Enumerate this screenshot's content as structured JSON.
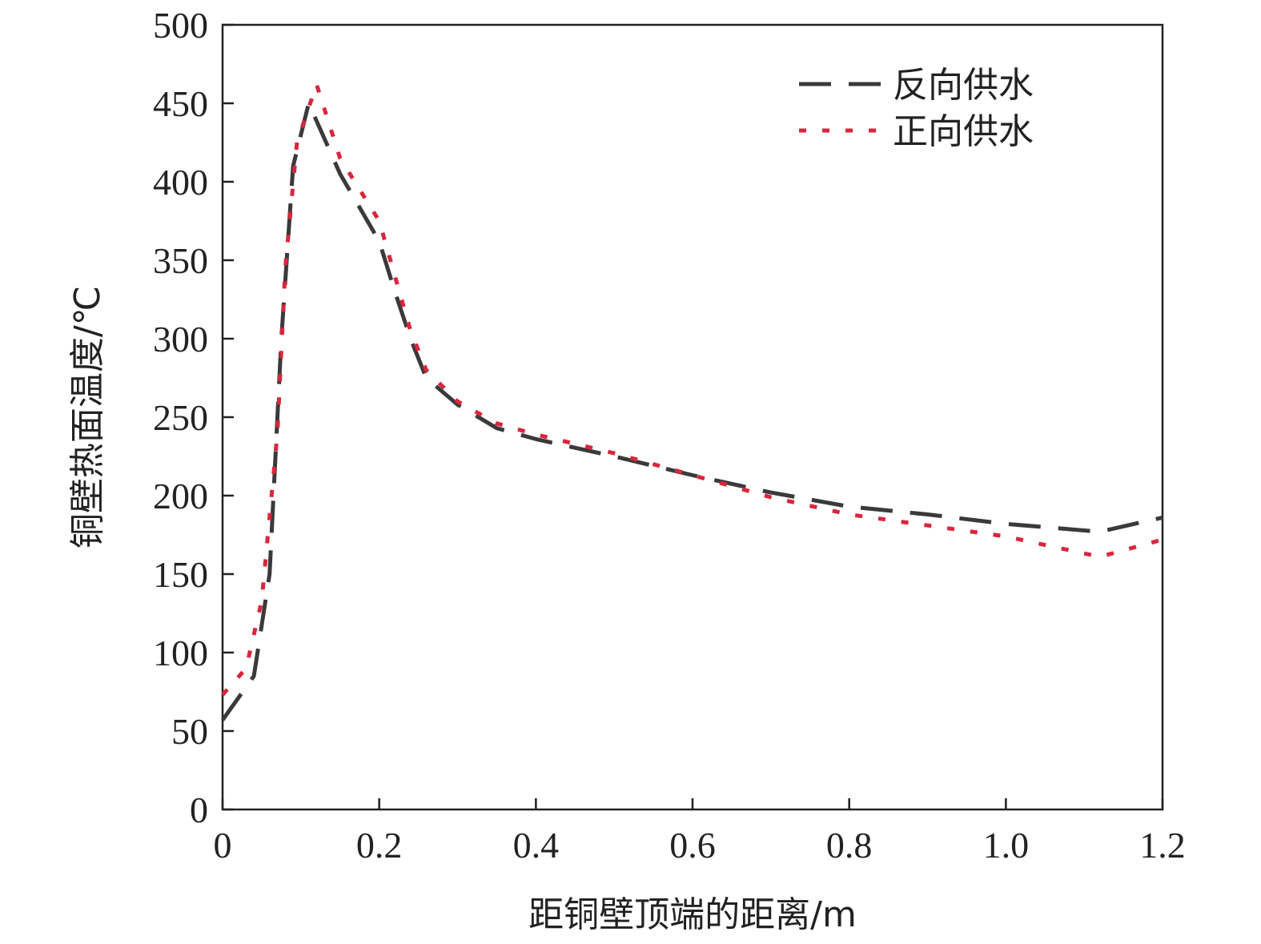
{
  "chart_data": {
    "type": "line",
    "title": "",
    "xlabel": "距铜壁顶端的距离/m",
    "ylabel": "铜壁热面温度/℃",
    "xlim": [
      0,
      1.2
    ],
    "ylim": [
      0,
      500
    ],
    "x_ticks": [
      "0",
      "0.2",
      "0.4",
      "0.6",
      "0.8",
      "1.0",
      "1.2"
    ],
    "y_ticks": [
      "0",
      "50",
      "100",
      "150",
      "200",
      "250",
      "300",
      "350",
      "400",
      "450",
      "500"
    ],
    "grid": false,
    "legend_position": "top-right",
    "series": [
      {
        "name": "反向供水",
        "color": "#3a3a3c",
        "style": "dashed",
        "points": [
          [
            0,
            57
          ],
          [
            0.04,
            85
          ],
          [
            0.06,
            150
          ],
          [
            0.075,
            300
          ],
          [
            0.09,
            410
          ],
          [
            0.11,
            450
          ],
          [
            0.15,
            405
          ],
          [
            0.2,
            362
          ],
          [
            0.22,
            330
          ],
          [
            0.24,
            300
          ],
          [
            0.26,
            275
          ],
          [
            0.3,
            258
          ],
          [
            0.35,
            243
          ],
          [
            0.4,
            236
          ],
          [
            0.5,
            225
          ],
          [
            0.6,
            213
          ],
          [
            0.7,
            202
          ],
          [
            0.8,
            193
          ],
          [
            0.9,
            188
          ],
          [
            1.0,
            182
          ],
          [
            1.12,
            177
          ],
          [
            1.2,
            186
          ]
        ]
      },
      {
        "name": "正向供水",
        "color": "#d9263c",
        "style": "dotted",
        "points": [
          [
            0,
            73
          ],
          [
            0.03,
            90
          ],
          [
            0.05,
            133
          ],
          [
            0.07,
            240
          ],
          [
            0.08,
            345
          ],
          [
            0.095,
            425
          ],
          [
            0.12,
            462
          ],
          [
            0.15,
            415
          ],
          [
            0.2,
            375
          ],
          [
            0.22,
            340
          ],
          [
            0.24,
            305
          ],
          [
            0.26,
            280
          ],
          [
            0.3,
            260
          ],
          [
            0.35,
            246
          ],
          [
            0.4,
            239
          ],
          [
            0.5,
            227
          ],
          [
            0.6,
            213
          ],
          [
            0.7,
            199
          ],
          [
            0.8,
            188
          ],
          [
            0.9,
            181
          ],
          [
            1.0,
            174
          ],
          [
            1.12,
            161
          ],
          [
            1.2,
            172
          ]
        ]
      }
    ]
  }
}
